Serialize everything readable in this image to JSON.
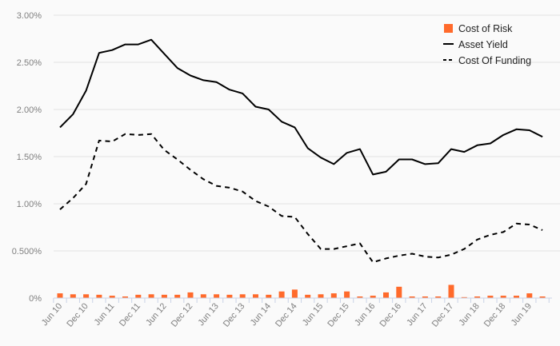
{
  "chart_data": {
    "type": "bar+line",
    "title": "",
    "xlabel": "",
    "ylabel": "",
    "ylim": [
      0,
      3.0
    ],
    "yticks": [
      "0%",
      "0.500%",
      "1.00%",
      "1.50%",
      "2.00%",
      "2.50%",
      "3.00%"
    ],
    "ytick_values": [
      0,
      0.5,
      1.0,
      1.5,
      2.0,
      2.5,
      3.0
    ],
    "grid": true,
    "legend_position": "top-right",
    "x_tick_labels": [
      "Jun 10",
      "Dec 10",
      "Jun 11",
      "Dec 11",
      "Jun 12",
      "Dec 12",
      "Jun 13",
      "Dec 13",
      "Jun 14",
      "Dec 14",
      "Jun 15",
      "Dec 15",
      "Jun 16",
      "Dec 16",
      "Jun 17",
      "Dec 17",
      "Jun 18",
      "Dec 18",
      "Jun 19"
    ],
    "x_periods": "quarterly, Jun 10 to Sep 19 (38 points)",
    "series": [
      {
        "name": "Cost of Risk",
        "kind": "bar",
        "color": "#ff6a2b",
        "values": [
          0.05,
          0.04,
          0.04,
          0.035,
          0.025,
          0.017,
          0.035,
          0.04,
          0.035,
          0.035,
          0.06,
          0.04,
          0.04,
          0.035,
          0.04,
          0.04,
          0.035,
          0.07,
          0.09,
          0.035,
          0.04,
          0.05,
          0.07,
          0.017,
          0.025,
          0.06,
          0.12,
          0.017,
          0.017,
          0.017,
          0.14,
          0.01,
          0.017,
          0.025,
          0.025,
          0.025,
          0.05,
          0.017
        ]
      },
      {
        "name": "Asset Yield",
        "kind": "line",
        "style": "solid",
        "color": "#000000",
        "values": [
          1.81,
          1.95,
          2.2,
          2.6,
          2.63,
          2.69,
          2.69,
          2.74,
          2.59,
          2.44,
          2.36,
          2.31,
          2.29,
          2.21,
          2.17,
          2.03,
          2.0,
          1.87,
          1.81,
          1.59,
          1.49,
          1.42,
          1.54,
          1.58,
          1.31,
          1.34,
          1.47,
          1.47,
          1.42,
          1.43,
          1.58,
          1.55,
          1.62,
          1.64,
          1.73,
          1.79,
          1.78,
          1.71
        ]
      },
      {
        "name": "Cost Of Funding",
        "kind": "line",
        "style": "dashed",
        "color": "#000000",
        "values": [
          0.94,
          1.06,
          1.21,
          1.67,
          1.66,
          1.74,
          1.73,
          1.74,
          1.57,
          1.47,
          1.36,
          1.26,
          1.19,
          1.17,
          1.13,
          1.03,
          0.97,
          0.87,
          0.86,
          0.68,
          0.52,
          0.52,
          0.55,
          0.58,
          0.38,
          0.42,
          0.45,
          0.47,
          0.44,
          0.43,
          0.46,
          0.52,
          0.62,
          0.67,
          0.7,
          0.79,
          0.78,
          0.72
        ]
      }
    ]
  },
  "colors": {
    "grid": "#e3e3e3",
    "axis": "#c9d3e6",
    "background": "#fafafa"
  }
}
